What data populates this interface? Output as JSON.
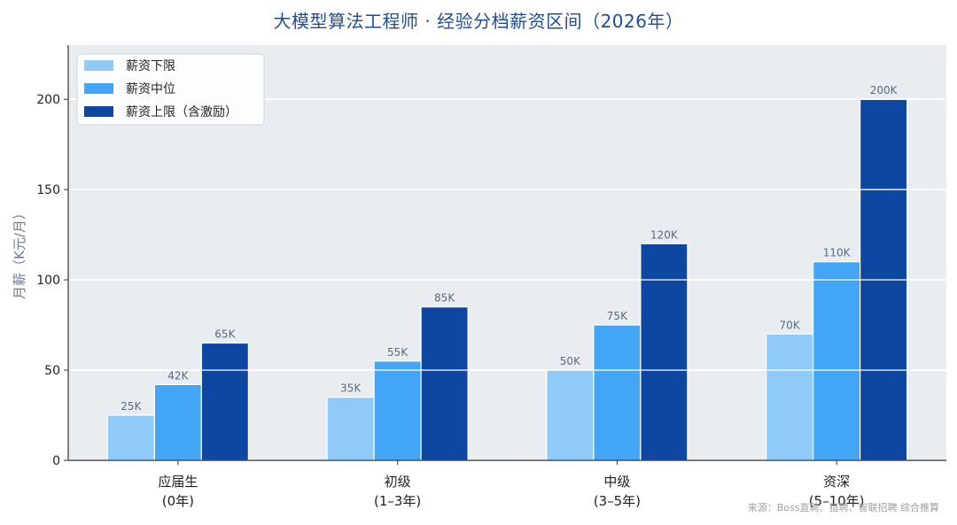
{
  "chart_data": {
    "type": "bar",
    "title": "大模型算法工程师 · 经验分档薪资区间（2026年）",
    "ylabel": "月薪（K元/月）",
    "xlabel": "",
    "ylim": [
      0,
      230
    ],
    "yticks": [
      0,
      50,
      100,
      150,
      200
    ],
    "grid": true,
    "legend_position": "top-left",
    "categories": [
      [
        "应届生",
        "(0年)"
      ],
      [
        "初级",
        "(1–3年)"
      ],
      [
        "中级",
        "(3–5年)"
      ],
      [
        "资深",
        "(5–10年)"
      ]
    ],
    "series": [
      {
        "name": "薪资下限",
        "color": "#90caf9",
        "values": [
          25,
          35,
          50,
          70
        ],
        "labels": [
          "25K",
          "35K",
          "50K",
          "70K"
        ]
      },
      {
        "name": "薪资中位",
        "color": "#42a5f5",
        "values": [
          42,
          55,
          75,
          110
        ],
        "labels": [
          "42K",
          "55K",
          "75K",
          "110K"
        ]
      },
      {
        "name": "薪资上限（含激励）",
        "color": "#0d47a1",
        "values": [
          65,
          85,
          120,
          200
        ],
        "labels": [
          "65K",
          "85K",
          "120K",
          "200K"
        ]
      }
    ]
  },
  "source": "来源：Boss直聘、猎聘、智联招聘 综合推算",
  "colors": {
    "plot_bg": "#e9edf1",
    "grid": "#ffffff",
    "axis": "#333333"
  }
}
